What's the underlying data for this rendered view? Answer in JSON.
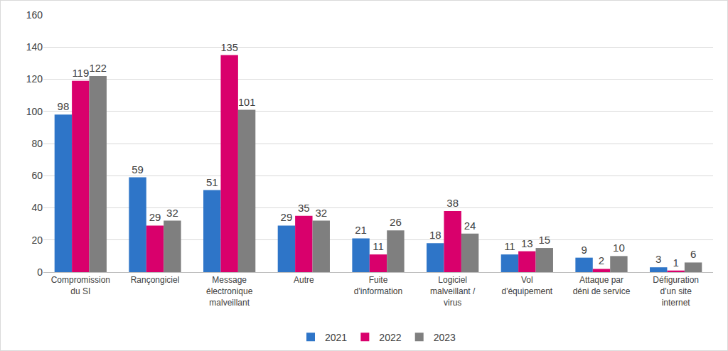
{
  "chart_data": {
    "type": "bar",
    "categories": [
      "Compromission du SI",
      "Rançongiciel",
      "Message électronique malveillant",
      "Autre",
      "Fuite d'information",
      "Logiciel malveillant / virus",
      "Vol d'équipement",
      "Attaque par déni de service",
      "Défiguration d'un site internet"
    ],
    "series": [
      {
        "name": "2021",
        "color": "#2E75C8",
        "values": [
          98,
          59,
          51,
          29,
          21,
          18,
          11,
          9,
          3
        ]
      },
      {
        "name": "2022",
        "color": "#D9006C",
        "values": [
          119,
          29,
          135,
          35,
          11,
          38,
          13,
          2,
          1
        ]
      },
      {
        "name": "2023",
        "color": "#7F7F7F",
        "values": [
          122,
          32,
          101,
          32,
          26,
          24,
          15,
          10,
          6
        ]
      }
    ],
    "ylim": [
      0,
      160
    ],
    "yticks": [
      0,
      20,
      40,
      60,
      80,
      100,
      120,
      140,
      160
    ],
    "grid": true,
    "legend": "bottom",
    "data_labels": true
  }
}
